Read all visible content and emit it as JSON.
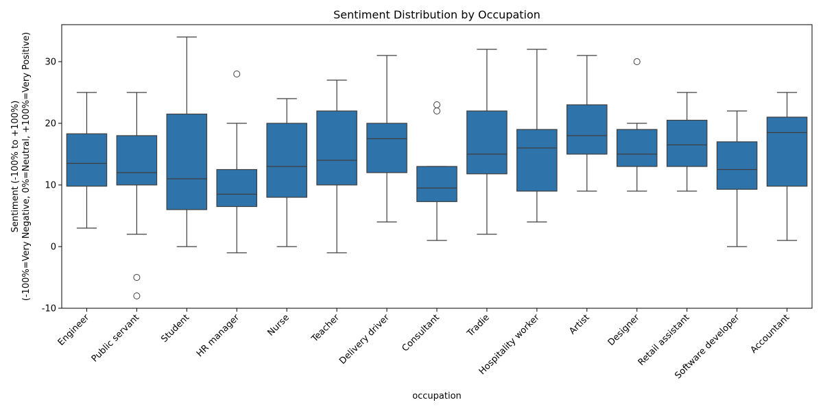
{
  "chart_data": {
    "type": "box",
    "title": "Sentiment Distribution by Occupation",
    "xlabel": "occupation",
    "ylabel_line1": "Sentiment (-100% to +100%)",
    "ylabel_line2": "(-100%=Very Negative, 0%=Neutral, +100%=Very Positive)",
    "ylim": [
      -10,
      36
    ],
    "yticks": [
      -10,
      0,
      10,
      20,
      30
    ],
    "box_color": "#2f73ab",
    "line_color": "#3d3d3d",
    "grid": false,
    "legend": "none",
    "categories": [
      {
        "name": "Engineer",
        "whisker_low": 3,
        "q1": 9.8,
        "median": 13.5,
        "q3": 18.3,
        "whisker_high": 25,
        "outliers": []
      },
      {
        "name": "Public servant",
        "whisker_low": 2,
        "q1": 10,
        "median": 12,
        "q3": 18,
        "whisker_high": 25,
        "outliers": [
          -5,
          -8
        ]
      },
      {
        "name": "Student",
        "whisker_low": 0,
        "q1": 6,
        "median": 11,
        "q3": 21.5,
        "whisker_high": 34,
        "outliers": []
      },
      {
        "name": "HR manager",
        "whisker_low": -1,
        "q1": 6.5,
        "median": 8.5,
        "q3": 12.5,
        "whisker_high": 20,
        "outliers": [
          28
        ]
      },
      {
        "name": "Nurse",
        "whisker_low": 0,
        "q1": 8,
        "median": 13,
        "q3": 20,
        "whisker_high": 24,
        "outliers": []
      },
      {
        "name": "Teacher",
        "whisker_low": -1,
        "q1": 10,
        "median": 14,
        "q3": 22,
        "whisker_high": 27,
        "outliers": []
      },
      {
        "name": "Delivery driver",
        "whisker_low": 4,
        "q1": 12,
        "median": 17.5,
        "q3": 20,
        "whisker_high": 31,
        "outliers": []
      },
      {
        "name": "Consultant",
        "whisker_low": 1,
        "q1": 7.3,
        "median": 9.5,
        "q3": 13,
        "whisker_high": 13,
        "outliers": [
          22,
          23
        ]
      },
      {
        "name": "Tradie",
        "whisker_low": 2,
        "q1": 11.8,
        "median": 15,
        "q3": 22,
        "whisker_high": 32,
        "outliers": []
      },
      {
        "name": "Hospitality worker",
        "whisker_low": 4,
        "q1": 9,
        "median": 16,
        "q3": 19,
        "whisker_high": 32,
        "outliers": []
      },
      {
        "name": "Artist",
        "whisker_low": 9,
        "q1": 15,
        "median": 18,
        "q3": 23,
        "whisker_high": 31,
        "outliers": []
      },
      {
        "name": "Designer",
        "whisker_low": 9,
        "q1": 13,
        "median": 15,
        "q3": 19,
        "whisker_high": 20,
        "outliers": [
          30
        ]
      },
      {
        "name": "Retail assistant",
        "whisker_low": 9,
        "q1": 13,
        "median": 16.5,
        "q3": 20.5,
        "whisker_high": 25,
        "outliers": []
      },
      {
        "name": "Software developer",
        "whisker_low": 0,
        "q1": 9.3,
        "median": 12.5,
        "q3": 17,
        "whisker_high": 22,
        "outliers": []
      },
      {
        "name": "Accountant",
        "whisker_low": 1,
        "q1": 9.8,
        "median": 18.5,
        "q3": 21,
        "whisker_high": 25,
        "outliers": []
      }
    ]
  }
}
